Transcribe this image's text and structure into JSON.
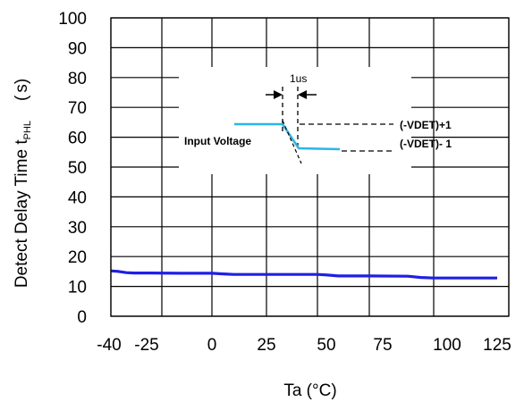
{
  "chart_data": {
    "type": "line",
    "xlabel": "Ta (°C)",
    "ylabel": {
      "main": "Detect Delay Time t",
      "sub": "PHL",
      "unit": "(",
      "unit_end": "s)"
    },
    "x_ticks": [
      "-40",
      "-25",
      "0",
      "25",
      "50",
      "75",
      "100",
      "125"
    ],
    "y_ticks": [
      "0",
      "10",
      "20",
      "30",
      "40",
      "50",
      "60",
      "70",
      "80",
      "90",
      "100"
    ],
    "xlim": [
      -40,
      125
    ],
    "ylim": [
      0,
      100
    ],
    "grid": true,
    "series": [
      {
        "color": "#1e1ee6",
        "x": [
          -40,
          -35,
          -30,
          -25,
          -20,
          -10,
          0,
          5,
          10,
          20,
          30,
          40,
          50,
          55,
          60,
          65,
          75,
          90,
          95,
          100,
          110,
          125
        ],
        "y": [
          15.2,
          15.0,
          14.6,
          14.5,
          14.5,
          14.4,
          14.4,
          14.2,
          14.0,
          14.0,
          14.0,
          14.0,
          14.0,
          13.8,
          13.5,
          13.5,
          13.5,
          13.4,
          13.0,
          12.8,
          12.8,
          12.8
        ]
      }
    ],
    "inset": {
      "label_1us": "1us",
      "label_input": "Input Voltage",
      "label_high": "(-VDET)+1",
      "label_low": "(-VDET)- 1",
      "waveform_color": "#29b6e8"
    }
  }
}
